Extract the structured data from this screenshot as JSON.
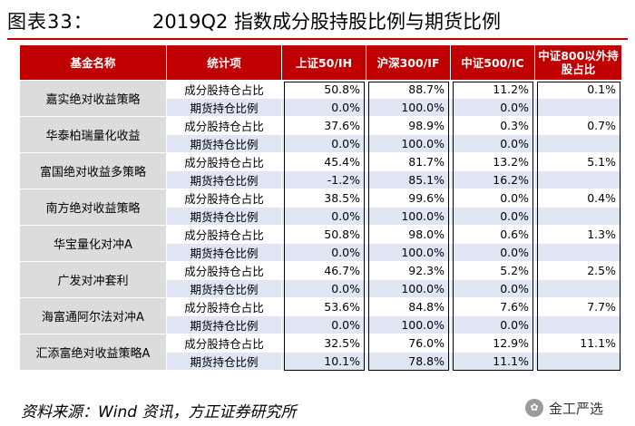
{
  "title": {
    "label": "图表33：",
    "text": "2019Q2 指数成分股持股比例与期货比例"
  },
  "table": {
    "headers": [
      "基金名称",
      "统计项",
      "上证50/IH",
      "沪深300/IF",
      "中证500/IC",
      "中证800以外持股占比"
    ],
    "funds": [
      {
        "name": "嘉实绝对收益策略",
        "rows": [
          {
            "metric": "成分股持仓占比",
            "ih": "50.8%",
            "if": "88.7%",
            "ic": "11.2%",
            "ex800": "0.1%"
          },
          {
            "metric": "期货持仓比例",
            "ih": "0.0%",
            "if": "100.0%",
            "ic": "0.0%",
            "ex800": ""
          }
        ]
      },
      {
        "name": "华泰柏瑞量化收益",
        "rows": [
          {
            "metric": "成分股持仓占比",
            "ih": "37.6%",
            "if": "98.9%",
            "ic": "0.3%",
            "ex800": "0.7%"
          },
          {
            "metric": "期货持仓比例",
            "ih": "0.0%",
            "if": "100.0%",
            "ic": "0.0%",
            "ex800": ""
          }
        ]
      },
      {
        "name": "富国绝对收益多策略",
        "rows": [
          {
            "metric": "成分股持仓占比",
            "ih": "45.4%",
            "if": "81.7%",
            "ic": "13.2%",
            "ex800": "5.1%"
          },
          {
            "metric": "期货持仓比例",
            "ih": "-1.2%",
            "if": "85.1%",
            "ic": "16.2%",
            "ex800": ""
          }
        ]
      },
      {
        "name": "南方绝对收益策略",
        "rows": [
          {
            "metric": "成分股持仓占比",
            "ih": "38.5%",
            "if": "99.6%",
            "ic": "0.0%",
            "ex800": "0.4%"
          },
          {
            "metric": "期货持仓比例",
            "ih": "0.0%",
            "if": "100.0%",
            "ic": "0.0%",
            "ex800": ""
          }
        ]
      },
      {
        "name": "华宝量化对冲A",
        "rows": [
          {
            "metric": "成分股持仓占比",
            "ih": "50.8%",
            "if": "98.0%",
            "ic": "0.6%",
            "ex800": "1.3%"
          },
          {
            "metric": "期货持仓比例",
            "ih": "0.0%",
            "if": "100.0%",
            "ic": "0.0%",
            "ex800": ""
          }
        ]
      },
      {
        "name": "广发对冲套利",
        "rows": [
          {
            "metric": "成分股持仓占比",
            "ih": "46.7%",
            "if": "92.3%",
            "ic": "5.2%",
            "ex800": "2.5%"
          },
          {
            "metric": "期货持仓比例",
            "ih": "0.0%",
            "if": "100.0%",
            "ic": "0.0%",
            "ex800": ""
          }
        ]
      },
      {
        "name": "海富通阿尔法对冲A",
        "rows": [
          {
            "metric": "成分股持仓占比",
            "ih": "53.6%",
            "if": "84.8%",
            "ic": "7.6%",
            "ex800": "7.7%"
          },
          {
            "metric": "期货持仓比例",
            "ih": "0.0%",
            "if": "100.0%",
            "ic": "0.0%",
            "ex800": ""
          }
        ]
      },
      {
        "name": "汇添富绝对收益策略A",
        "rows": [
          {
            "metric": "成分股持仓占比",
            "ih": "32.5%",
            "if": "76.0%",
            "ic": "12.9%",
            "ex800": "11.1%"
          },
          {
            "metric": "期货持仓比例",
            "ih": "10.1%",
            "if": "78.8%",
            "ic": "11.1%",
            "ex800": ""
          }
        ]
      }
    ]
  },
  "source": "资料来源：Wind 资讯，方正证券研究所",
  "watermark": "金工严选",
  "colors": {
    "header_bg": "#c00000",
    "fund_bg": "#dcdcdc",
    "alt_row_bg": "#dfe5f3"
  }
}
